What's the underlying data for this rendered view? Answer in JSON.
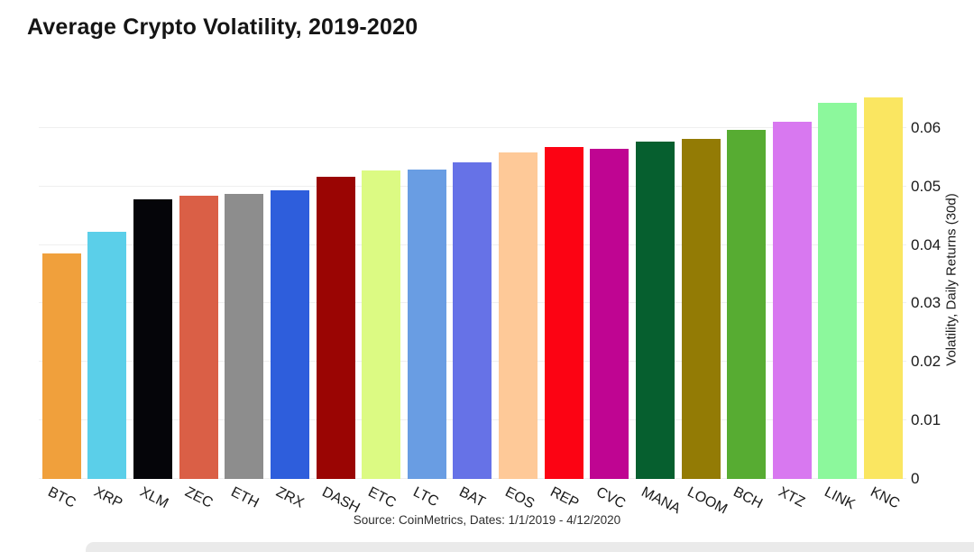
{
  "title": "Average Crypto Volatility, 2019-2020",
  "source_note": "Source: CoinMetrics, Dates: 1/1/2019 - 4/12/2020",
  "chart_data": {
    "type": "bar",
    "title": "Average Crypto Volatility, 2019-2020",
    "categories": [
      "BTC",
      "XRP",
      "XLM",
      "ZEC",
      "ETH",
      "ZRX",
      "DASH",
      "ETC",
      "LTC",
      "BAT",
      "EOS",
      "REP",
      "CVC",
      "MANA",
      "LOOM",
      "BCH",
      "XTZ",
      "LINK",
      "KNC"
    ],
    "values": [
      0.0386,
      0.0423,
      0.0478,
      0.0484,
      0.0487,
      0.0494,
      0.0517,
      0.0527,
      0.0529,
      0.0541,
      0.0558,
      0.0567,
      0.0565,
      0.0577,
      0.0582,
      0.0597,
      0.0611,
      0.0643,
      0.0652
    ],
    "bar_colors": [
      "#F0A03C",
      "#5BCFE9",
      "#050509",
      "#DA5F46",
      "#8D8D8D",
      "#2E5EDC",
      "#9A0503",
      "#DCFA83",
      "#699DE3",
      "#6672E7",
      "#FEC998",
      "#FC0313",
      "#BF0592",
      "#065F2F",
      "#937B05",
      "#57AC32",
      "#D878F0",
      "#8CF89C",
      "#FAE661"
    ],
    "xlabel": "",
    "ylabel": "Volatility, Daily Returns (30d)",
    "ylim": [
      0,
      0.068
    ],
    "yticks": [
      0,
      0.01,
      0.02,
      0.03,
      0.04,
      0.05,
      0.06
    ],
    "ytick_labels": [
      "0",
      "0.01",
      "0.02",
      "0.03",
      "0.04",
      "0.05",
      "0.06"
    ],
    "grid": true,
    "gridline_color": "#efefef",
    "legend": false,
    "axis_side": "right"
  }
}
